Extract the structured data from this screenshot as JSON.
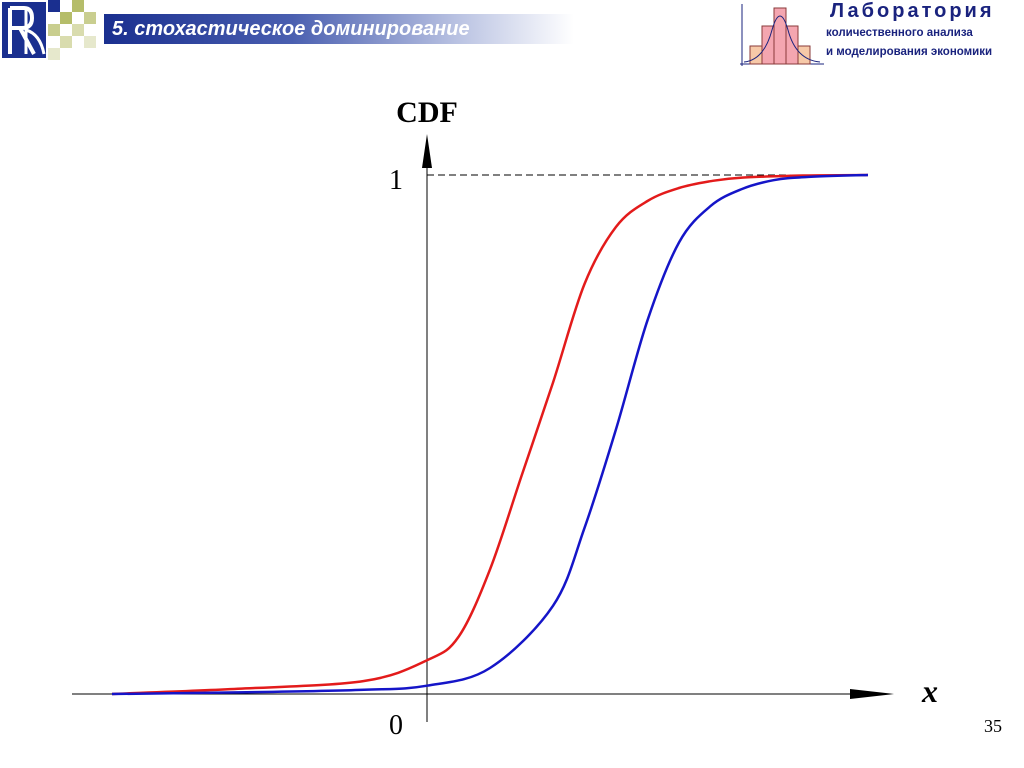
{
  "header": {
    "title": "5. стохастическое доминирование",
    "lab_name": "Лаборатория",
    "lab_sub1": "количественного анализа",
    "lab_sub2": "и моделирования экономики"
  },
  "slide_number": "35",
  "colors": {
    "title_bar": "#1a2f8f",
    "lab_text": "#1a237e",
    "series_red": "#e31b1b",
    "series_blue": "#1515c8"
  },
  "chart_data": {
    "type": "line",
    "title": "",
    "ylabel": "CDF",
    "xlabel": "x",
    "yticks": [
      {
        "value": 0,
        "label": "0"
      },
      {
        "value": 1,
        "label": "1"
      }
    ],
    "xlim": [
      -5.5,
      7.8
    ],
    "ylim": [
      0,
      1
    ],
    "grid": false,
    "reference_line": {
      "y": 1,
      "style": "dashed"
    },
    "series": [
      {
        "color": "#e31b1b",
        "x": [
          -5.0,
          -3.0,
          -1.0,
          0.0,
          0.5,
          1.0,
          1.5,
          2.0,
          2.5,
          3.0,
          3.5,
          4.0,
          4.5,
          5.0,
          6.0,
          7.0
        ],
        "values": [
          0.0,
          0.01,
          0.025,
          0.065,
          0.11,
          0.24,
          0.42,
          0.6,
          0.79,
          0.9,
          0.95,
          0.975,
          0.988,
          0.995,
          0.999,
          1.0
        ]
      },
      {
        "color": "#1515c8",
        "x": [
          -5.0,
          -3.0,
          -1.0,
          0.0,
          1.0,
          2.0,
          2.5,
          3.0,
          3.5,
          4.0,
          4.5,
          5.0,
          5.5,
          6.0,
          7.0
        ],
        "values": [
          0.0,
          0.003,
          0.008,
          0.016,
          0.05,
          0.17,
          0.32,
          0.51,
          0.72,
          0.87,
          0.94,
          0.973,
          0.99,
          0.996,
          1.0
        ]
      }
    ]
  }
}
